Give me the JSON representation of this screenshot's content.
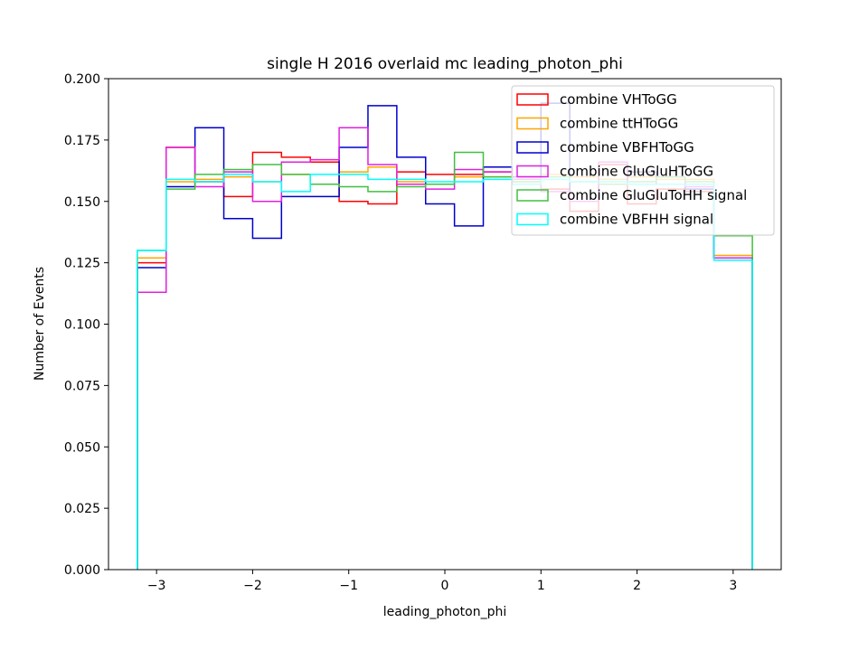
{
  "chart_data": {
    "type": "histogram-step",
    "title": "single H 2016 overlaid mc leading_photon_phi",
    "xlabel": "leading_photon_phi",
    "ylabel": "Number of Events",
    "xlim": [
      -3.5,
      3.5
    ],
    "ylim": [
      0.0,
      0.2
    ],
    "xticks": [
      -3,
      -2,
      -1,
      0,
      1,
      2,
      3
    ],
    "xtick_labels": [
      "−3",
      "−2",
      "−1",
      "0",
      "1",
      "2",
      "3"
    ],
    "yticks": [
      0.0,
      0.025,
      0.05,
      0.075,
      0.1,
      0.125,
      0.15,
      0.175,
      0.2
    ],
    "ytick_labels": [
      "0.000",
      "0.025",
      "0.050",
      "0.075",
      "0.100",
      "0.125",
      "0.150",
      "0.175",
      "0.200"
    ],
    "legend_position": "top-right",
    "bin_edges": [
      -3.2,
      -2.9,
      -2.6,
      -2.3,
      -2.0,
      -1.7,
      -1.4,
      -1.1,
      -0.8,
      -0.5,
      -0.2,
      0.1,
      0.4,
      0.7,
      1.0,
      1.3,
      1.6,
      1.9,
      2.2,
      2.5,
      2.8,
      3.2
    ],
    "series": [
      {
        "name": "combine VHToGG",
        "color": "#ff0000",
        "values": [
          0.125,
          0.172,
          0.158,
          0.152,
          0.17,
          0.168,
          0.166,
          0.15,
          0.149,
          0.162,
          0.161,
          0.161,
          0.162,
          0.157,
          0.155,
          0.146,
          0.165,
          0.149,
          0.155,
          0.154,
          0.127
        ]
      },
      {
        "name": "combine ttHToGG",
        "color": "#ffa500",
        "values": [
          0.127,
          0.158,
          0.159,
          0.16,
          0.158,
          0.161,
          0.157,
          0.162,
          0.164,
          0.158,
          0.157,
          0.16,
          0.16,
          0.158,
          0.161,
          0.16,
          0.159,
          0.16,
          0.159,
          0.159,
          0.128
        ]
      },
      {
        "name": "combine VBFHToGG",
        "color": "#0000cd",
        "values": [
          0.123,
          0.156,
          0.18,
          0.143,
          0.135,
          0.152,
          0.152,
          0.172,
          0.189,
          0.168,
          0.149,
          0.14,
          0.164,
          0.16,
          0.19,
          0.15,
          0.157,
          0.162,
          0.16,
          0.155,
          0.127
        ]
      },
      {
        "name": "combine GluGluHToGG",
        "color": "#e020e0",
        "values": [
          0.113,
          0.172,
          0.156,
          0.162,
          0.15,
          0.166,
          0.167,
          0.18,
          0.165,
          0.157,
          0.155,
          0.163,
          0.162,
          0.159,
          0.154,
          0.15,
          0.166,
          0.157,
          0.16,
          0.156,
          0.127
        ]
      },
      {
        "name": "combine GluGluToHH signal",
        "color": "#40c040",
        "values": [
          0.13,
          0.155,
          0.161,
          0.163,
          0.165,
          0.161,
          0.157,
          0.156,
          0.154,
          0.156,
          0.157,
          0.17,
          0.16,
          0.158,
          0.16,
          0.158,
          0.157,
          0.158,
          0.16,
          0.158,
          0.136
        ]
      },
      {
        "name": "combine VBFHH signal",
        "color": "#00ffff",
        "values": [
          0.13,
          0.159,
          0.158,
          0.161,
          0.158,
          0.154,
          0.161,
          0.161,
          0.159,
          0.159,
          0.158,
          0.158,
          0.159,
          0.157,
          0.159,
          0.158,
          0.158,
          0.157,
          0.157,
          0.157,
          0.126
        ]
      }
    ]
  }
}
